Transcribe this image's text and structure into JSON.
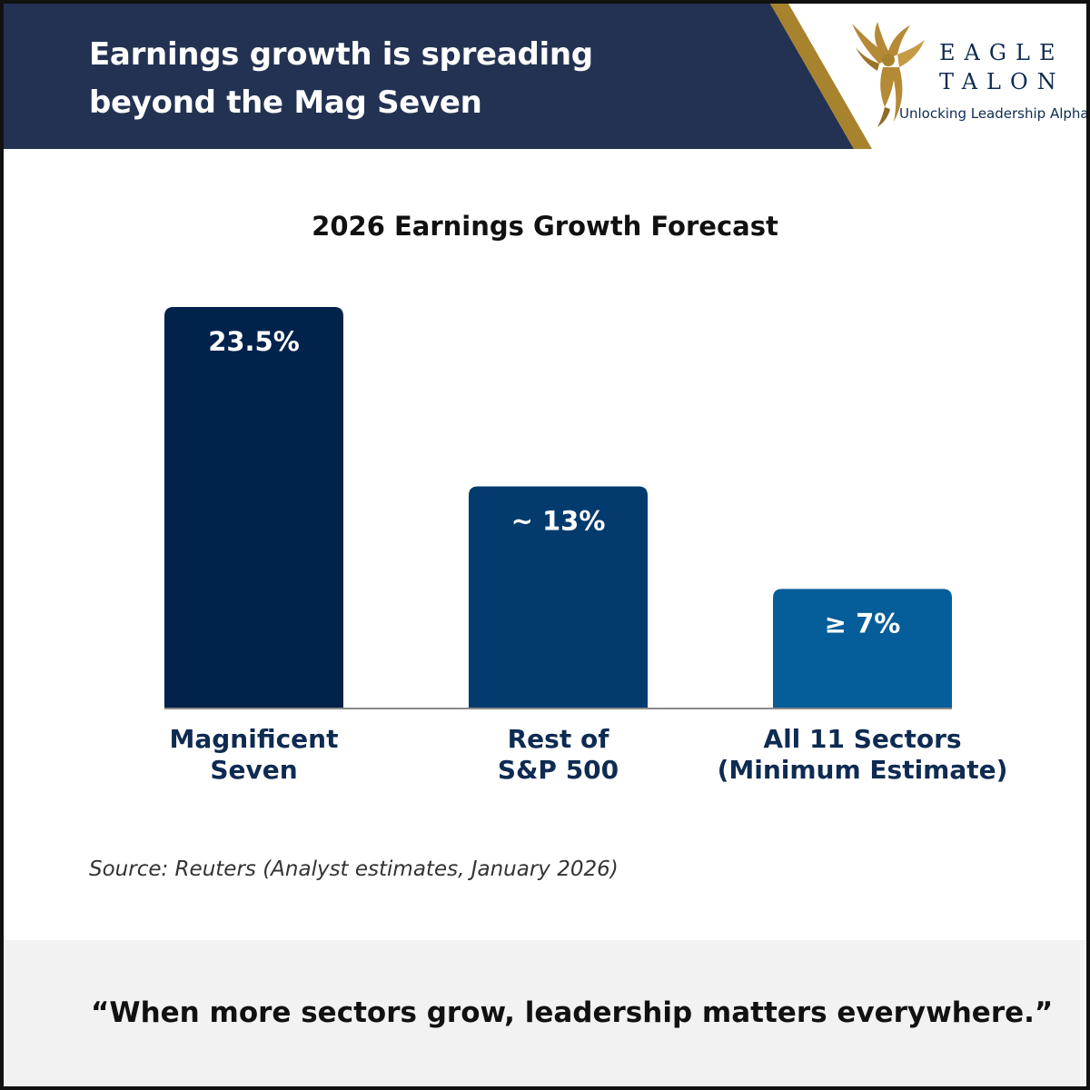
{
  "header": {
    "headline_line1": "Earnings growth is spreading",
    "headline_line2": "beyond the Mag Seven",
    "colors": {
      "navy": "#233252",
      "gold": "#a8832e"
    }
  },
  "logo": {
    "icon": "eagle-icon",
    "word1": "EAGLE",
    "word2": "TALON",
    "tagline": "Unlocking Leadership Alpha"
  },
  "chart_data": {
    "type": "bar",
    "title": "2026 Earnings Growth Forecast",
    "xlabel": "",
    "ylabel": "",
    "ylim": [
      0,
      23.5
    ],
    "grid": false,
    "legend": "none",
    "categories": [
      [
        "Magnificent",
        "Seven"
      ],
      [
        "Rest of",
        "S&P 500"
      ],
      [
        "All 11 Sectors",
        "(Minimum Estimate)"
      ]
    ],
    "values": [
      23.5,
      13,
      7
    ],
    "value_labels": [
      "23.5%",
      "~ 13%",
      "≥ 7%"
    ],
    "colors": [
      "#00224b",
      "#033b6e",
      "#055d99"
    ]
  },
  "source": "Source: Reuters (Analyst estimates, January 2026)",
  "footer": {
    "quote": "“When more sectors grow, leadership matters everywhere.”"
  }
}
